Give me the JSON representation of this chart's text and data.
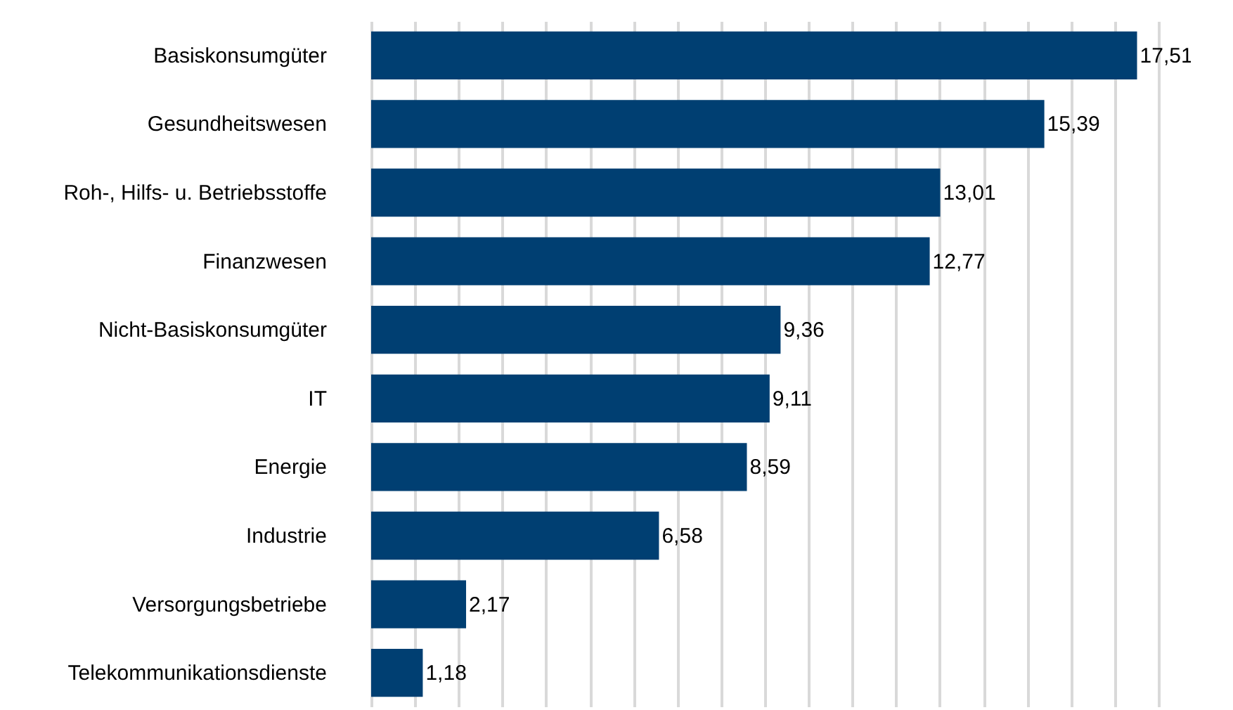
{
  "chart_data": {
    "type": "bar",
    "orientation": "horizontal",
    "categories": [
      "Basiskonsumgüter",
      "Gesundheitswesen",
      "Roh-, Hilfs- u. Betriebsstoffe",
      "Finanzwesen",
      "Nicht-Basiskonsumgüter",
      "IT",
      "Energie",
      "Industrie",
      "Versorgungsbetriebe",
      "Telekommunikationsdienste"
    ],
    "values": [
      17.51,
      15.39,
      13.01,
      12.77,
      9.36,
      9.11,
      8.59,
      6.58,
      2.17,
      1.18
    ],
    "value_labels": [
      "17,51",
      "15,39",
      "13,01",
      "12,77",
      "9,36",
      "9,11",
      "8,59",
      "6,58",
      "2,17",
      "1,18"
    ],
    "color": "#003f72",
    "grid": "x",
    "tick_labels": "y"
  }
}
